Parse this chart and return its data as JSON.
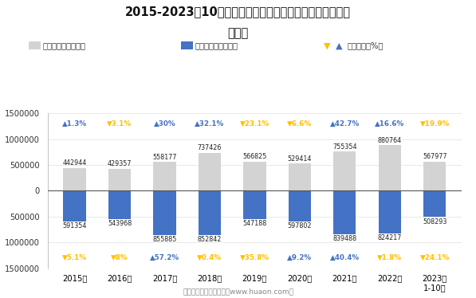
{
  "title_line1": "2015-2023年10月广西壮族自治区外商投资企业进、出口额",
  "title_line2": "统计图",
  "years": [
    "2015年",
    "2016年",
    "2017年",
    "2018年",
    "2019年",
    "2020年",
    "2021年",
    "2022年",
    "2023年\n1-10月"
  ],
  "export_values": [
    442944,
    429357,
    558177,
    737426,
    566825,
    529414,
    755354,
    880764,
    567977
  ],
  "import_values": [
    591354,
    543968,
    855885,
    852842,
    547188,
    597802,
    839488,
    824217,
    508293
  ],
  "export_growth": [
    1.3,
    -3.1,
    30.0,
    32.1,
    -23.1,
    -6.6,
    42.7,
    16.6,
    -19.9
  ],
  "import_growth": [
    -5.1,
    -8.0,
    57.2,
    -0.4,
    -35.8,
    9.2,
    40.4,
    -1.8,
    -24.1
  ],
  "export_color": "#d3d3d3",
  "import_color": "#4472c4",
  "growth_up_color_export": "#4472c4",
  "growth_down_color_export": "#ffc000",
  "growth_up_color_import": "#4472c4",
  "growth_down_color_import": "#ffc000",
  "bar_width": 0.5,
  "ylim": [
    -1500000,
    1500000
  ],
  "yticks": [
    -1500000,
    -1000000,
    -500000,
    0,
    500000,
    1000000,
    1500000
  ],
  "footer": "制图：华经产业研究院（www.huaon.com）",
  "legend_export": "出口总额（万美元）",
  "legend_import": "进口总额（万美元）",
  "legend_growth": "同比增速（%）"
}
